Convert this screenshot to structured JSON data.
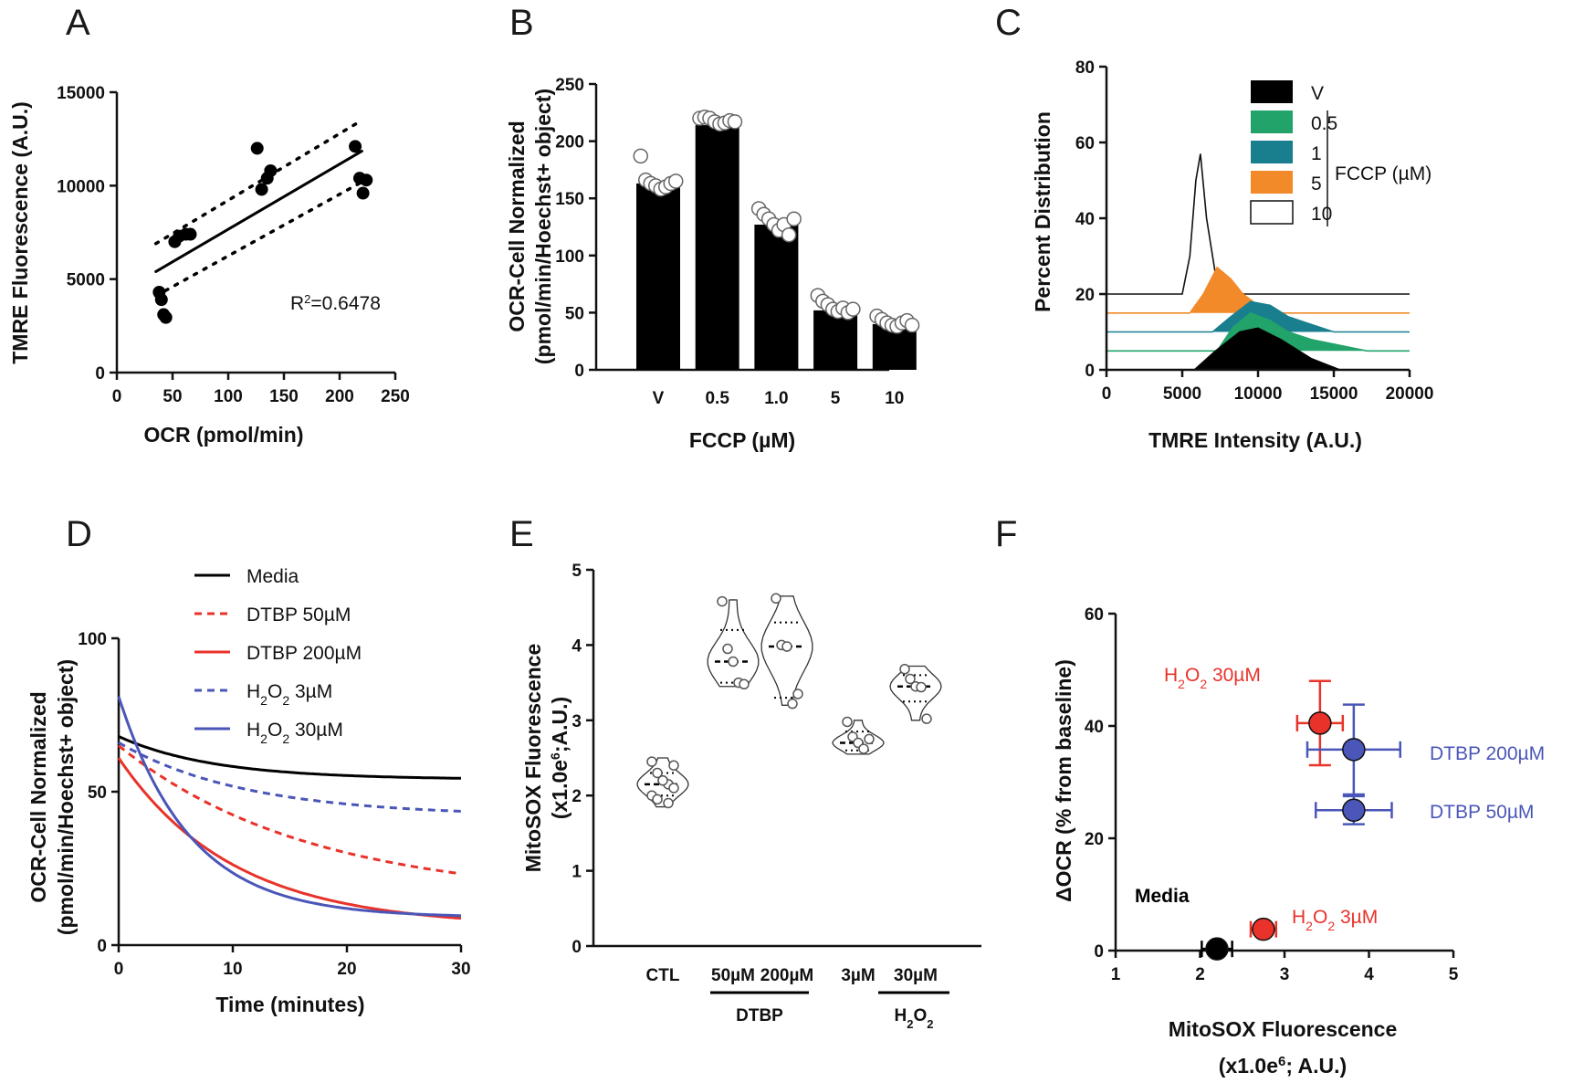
{
  "figure": {
    "panel_letters": [
      "A",
      "B",
      "C",
      "D",
      "E",
      "F"
    ]
  },
  "chart_data": [
    {
      "panel": "A",
      "type": "scatter",
      "xlabel": "OCR (pmol/min)",
      "ylabel": "TMRE Fluorescence  (A.U.)",
      "xlim": [
        0,
        250
      ],
      "ylim": [
        0,
        15000
      ],
      "xticks": [
        0,
        50,
        100,
        150,
        200,
        250
      ],
      "yticks": [
        0,
        5000,
        10000,
        15000
      ],
      "points": [
        {
          "x": 38,
          "y": 4300
        },
        {
          "x": 40,
          "y": 3900
        },
        {
          "x": 42,
          "y": 3100
        },
        {
          "x": 44,
          "y": 2950
        },
        {
          "x": 52,
          "y": 7000
        },
        {
          "x": 56,
          "y": 7300
        },
        {
          "x": 62,
          "y": 7400
        },
        {
          "x": 66,
          "y": 7400
        },
        {
          "x": 126,
          "y": 12000
        },
        {
          "x": 130,
          "y": 9800
        },
        {
          "x": 135,
          "y": 10400
        },
        {
          "x": 138,
          "y": 10800
        },
        {
          "x": 214,
          "y": 12100
        },
        {
          "x": 218,
          "y": 10400
        },
        {
          "x": 221,
          "y": 9600
        },
        {
          "x": 224,
          "y": 10300
        }
      ],
      "fit": {
        "x": [
          35,
          220
        ],
        "y": [
          5400,
          11850
        ]
      },
      "ci_upper": {
        "x": [
          35,
          220
        ],
        "y": [
          6900,
          13500
        ]
      },
      "ci_lower": {
        "x": [
          35,
          220
        ],
        "y": [
          4100,
          10200
        ]
      },
      "annotation_prefix": "R",
      "annotation_sup": "2",
      "annotation_value": "=0.6478"
    },
    {
      "panel": "B",
      "type": "bar",
      "xlabel": "FCCP (µM)",
      "ylabel_line1": "OCR-Cell Normalized",
      "ylabel_line2": "(pmol/min/Hoechst+ object)",
      "categories": [
        "V",
        "0.5",
        "1.0",
        "5",
        "10"
      ],
      "values": [
        163,
        214,
        127,
        52,
        40
      ],
      "ylim": [
        0,
        250
      ],
      "yticks": [
        0,
        50,
        100,
        150,
        200,
        250
      ],
      "replicates": [
        [
          187,
          166,
          163,
          161,
          158,
          160,
          163,
          165
        ],
        [
          220,
          221,
          220,
          217,
          215,
          216,
          218,
          217
        ],
        [
          141,
          136,
          132,
          127,
          122,
          127,
          118,
          132
        ],
        [
          65,
          60,
          57,
          53,
          51,
          54,
          50,
          53
        ],
        [
          47,
          44,
          41,
          39,
          38,
          41,
          43,
          39
        ]
      ]
    },
    {
      "panel": "C",
      "type": "area",
      "xlabel": "TMRE Intensity (A.U.)",
      "ylabel": "Percent Distribution",
      "xlim": [
        0,
        20000
      ],
      "ylim": [
        0,
        80
      ],
      "xticks": [
        0,
        5000,
        10000,
        15000,
        20000
      ],
      "yticks": [
        0,
        20,
        40,
        60,
        80
      ],
      "legend_group_label": "FCCP (µM)",
      "series": [
        {
          "name": "10",
          "color": "#ffffff",
          "offset": 20,
          "x": [
            0,
            5000,
            5500,
            5900,
            6200,
            6600,
            7200,
            8000,
            20000
          ],
          "y": [
            0,
            0,
            10,
            30,
            37,
            20,
            5,
            0,
            0
          ]
        },
        {
          "name": "5",
          "color": "#f28a2a",
          "offset": 15,
          "x": [
            0,
            5500,
            6400,
            7300,
            8200,
            9000,
            10000,
            11000,
            20000
          ],
          "y": [
            0,
            0,
            5,
            12,
            9,
            5,
            2,
            0,
            0
          ]
        },
        {
          "name": "1",
          "color": "#197f8f",
          "offset": 10,
          "x": [
            0,
            7000,
            8200,
            9500,
            10800,
            12000,
            13500,
            15000,
            20000
          ],
          "y": [
            0,
            0,
            4,
            8,
            7,
            4,
            2,
            0,
            0
          ]
        },
        {
          "name": "0.5",
          "color": "#22a36a",
          "offset": 5,
          "x": [
            0,
            7300,
            8300,
            9500,
            10800,
            12000,
            13500,
            17200,
            20000
          ],
          "y": [
            0,
            0,
            6,
            10,
            8,
            5,
            3,
            0,
            0
          ]
        },
        {
          "name": "V",
          "color": "#000000",
          "offset": 0,
          "x": [
            0,
            5800,
            7200,
            8800,
            10000,
            11500,
            13500,
            15400,
            20000
          ],
          "y": [
            0,
            0,
            5,
            10,
            11,
            8,
            3,
            0,
            0
          ]
        }
      ],
      "legend_order": [
        "V",
        "0.5",
        "1",
        "5",
        "10"
      ]
    },
    {
      "panel": "D",
      "type": "line",
      "xlabel": "Time (minutes)",
      "ylabel_line1": "OCR-Cell Normalized",
      "ylabel_line2": "(pmol/min/Hoechst+ object)",
      "xlim": [
        0,
        30
      ],
      "ylim": [
        0,
        100
      ],
      "xticks": [
        0,
        10,
        20,
        30
      ],
      "yticks": [
        0,
        50,
        100
      ],
      "series": [
        {
          "name": "Media",
          "sub": "",
          "color": "#000000",
          "dashed": false,
          "y0": 68,
          "yinf": 54,
          "k": 0.12
        },
        {
          "name": "DTBP 50µM",
          "sub": "",
          "color": "#e8322a",
          "dashed": true,
          "y0": 65,
          "yinf": 15,
          "k": 0.06
        },
        {
          "name": "DTBP 200µM",
          "sub": "",
          "color": "#e8322a",
          "dashed": false,
          "y0": 61,
          "yinf": 6,
          "k": 0.1
        },
        {
          "name": "H",
          "sub": "2",
          "name_rest": "O",
          "sub2": "2",
          "name_tail": " 3µM",
          "color": "#4a56b8",
          "dashed": true,
          "y0": 66,
          "yinf": 42,
          "k": 0.09
        },
        {
          "name": "H",
          "sub": "2",
          "name_rest": "O",
          "sub2": "2",
          "name_tail": " 30µM",
          "color": "#4a56b8",
          "dashed": false,
          "y0": 81,
          "yinf": 9,
          "k": 0.16
        }
      ],
      "legend_labels": [
        "Media",
        "DTBP 50µM",
        "DTBP 200µM",
        "H2O2 3µM",
        "H2O2 30µM"
      ]
    },
    {
      "panel": "E",
      "type": "violin",
      "ylabel_line1": "MitoSOX Fluorescence",
      "ylabel_line2": "(x1.0e",
      "ylabel_sup": "6",
      "ylabel_tail": ";A.U.)",
      "ylim": [
        0,
        5
      ],
      "yticks": [
        0,
        1,
        2,
        3,
        4,
        5
      ],
      "categories": [
        "CTL",
        "50µM",
        "200µM",
        "3µM",
        "30µM"
      ],
      "group_labels": [
        "DTBP",
        "H"
      ],
      "group_h2o2_sub": "2",
      "group_h2o2_rest": "O",
      "medians": [
        2.15,
        3.78,
        3.98,
        2.7,
        3.45
      ],
      "quartiles": [
        [
          2.0,
          2.3
        ],
        [
          3.5,
          4.2
        ],
        [
          3.3,
          4.3
        ],
        [
          2.6,
          2.85
        ],
        [
          3.25,
          3.6
        ]
      ],
      "ranges": [
        [
          1.85,
          2.5
        ],
        [
          3.45,
          4.6
        ],
        [
          3.2,
          4.65
        ],
        [
          2.55,
          3.0
        ],
        [
          3.0,
          3.72
        ]
      ],
      "points": [
        [
          2.45,
          2.3,
          2.2,
          2.15,
          2.1,
          2.0,
          1.95,
          2.2,
          1.9,
          2.4
        ],
        [
          4.58,
          3.95,
          3.78,
          3.5,
          3.48
        ],
        [
          4.62,
          4.0,
          3.98,
          3.22,
          3.35
        ],
        [
          2.98,
          2.78,
          2.7,
          2.62,
          2.75
        ],
        [
          3.68,
          3.55,
          3.45,
          3.44,
          3.02
        ]
      ]
    },
    {
      "panel": "F",
      "type": "scatter",
      "xlabel": "MitoSOX Fluorescence",
      "xlabel_line2_pre": "(x1.0e",
      "xlabel_sup": "6",
      "xlabel_line2_post": "; A.U.)",
      "ylabel": "ΔOCR (% from baseline)",
      "xlim": [
        1,
        5
      ],
      "ylim": [
        0,
        60
      ],
      "xticks": [
        1,
        2,
        3,
        4,
        5
      ],
      "yticks": [
        0,
        20,
        40,
        60
      ],
      "points": [
        {
          "label": "Media",
          "x": 2.2,
          "y": 0.3,
          "xerr": 0.18,
          "yerr": 0,
          "color": "#000000",
          "label_color": "#000000"
        },
        {
          "label_parts": [
            "H",
            "2",
            "O",
            "2",
            " 3µM"
          ],
          "x": 2.75,
          "y": 3.8,
          "xerr": 0.15,
          "yerr": 0,
          "color": "#e8322a",
          "label_color": "#e8322a"
        },
        {
          "label_parts": [
            "H",
            "2",
            "O",
            "2",
            " 30µM"
          ],
          "x": 3.42,
          "y": 40.5,
          "xerr": 0.27,
          "yerr": 7.5,
          "color": "#e8322a",
          "label_color": "#e8322a"
        },
        {
          "label": "DTBP 200µM",
          "x": 3.82,
          "y": 35.8,
          "xerr": 0.55,
          "yerr": 8.0,
          "color": "#4a56b8",
          "label_color": "#4a56b8"
        },
        {
          "label": "DTBP 50µM",
          "x": 3.82,
          "y": 25.0,
          "xerr": 0.45,
          "yerr": 2.5,
          "color": "#4a56b8",
          "label_color": "#4a56b8"
        }
      ]
    }
  ]
}
